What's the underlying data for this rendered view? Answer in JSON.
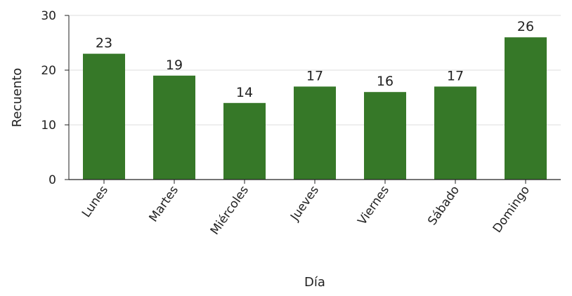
{
  "chart_data": {
    "type": "bar",
    "categories": [
      "Lunes",
      "Martes",
      "Miércoles",
      "Jueves",
      "Viernes",
      "Sábado",
      "Domingo"
    ],
    "values": [
      23,
      19,
      14,
      17,
      16,
      17,
      26
    ],
    "data_labels": [
      "23",
      "19",
      "14",
      "17",
      "16",
      "17",
      "26"
    ],
    "xlabel": "Día",
    "ylabel": "Recuento",
    "ylim": [
      0,
      30
    ],
    "yticks": [
      0,
      10,
      20,
      30
    ],
    "grid": "horizontal",
    "bar_color": "#367828",
    "axis_color": "#222222",
    "grid_color": "#dddddd"
  }
}
